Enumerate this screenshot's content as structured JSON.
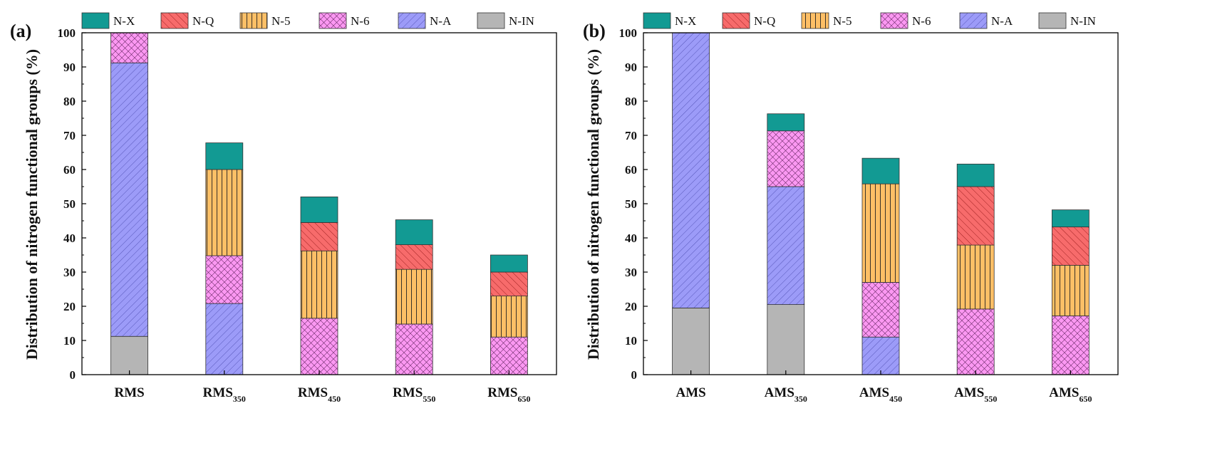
{
  "chart_data": [
    {
      "type": "bar",
      "stacked": true,
      "panel": "(a)",
      "ylabel": "Distribution of nitrogen functional groups (%)",
      "ylim": [
        0,
        100
      ],
      "yticks": [
        0,
        10,
        20,
        30,
        40,
        50,
        60,
        70,
        80,
        90,
        100
      ],
      "categories": [
        {
          "base": "RMS",
          "sub": ""
        },
        {
          "base": "RMS",
          "sub": "350"
        },
        {
          "base": "RMS",
          "sub": "450"
        },
        {
          "base": "RMS",
          "sub": "550"
        },
        {
          "base": "RMS",
          "sub": "650"
        }
      ],
      "series": [
        {
          "name": "N-IN",
          "values": [
            11.2,
            0,
            0,
            0,
            0
          ]
        },
        {
          "name": "N-A",
          "values": [
            80.0,
            20.8,
            0,
            0,
            0
          ]
        },
        {
          "name": "N-6",
          "values": [
            8.8,
            14.0,
            16.5,
            14.8,
            11.0
          ]
        },
        {
          "name": "N-5",
          "values": [
            0,
            25.2,
            19.7,
            16.0,
            12.0
          ]
        },
        {
          "name": "N-Q",
          "values": [
            0,
            0,
            8.3,
            7.2,
            7.0
          ]
        },
        {
          "name": "N-X",
          "values": [
            0,
            7.8,
            7.5,
            7.3,
            5.0
          ]
        }
      ]
    },
    {
      "type": "bar",
      "stacked": true,
      "panel": "(b)",
      "ylabel": "Distribution of nitrogen functional groups (%)",
      "ylim": [
        0,
        100
      ],
      "yticks": [
        0,
        10,
        20,
        30,
        40,
        50,
        60,
        70,
        80,
        90,
        100
      ],
      "categories": [
        {
          "base": "AMS",
          "sub": ""
        },
        {
          "base": "AMS",
          "sub": "350"
        },
        {
          "base": "AMS",
          "sub": "450"
        },
        {
          "base": "AMS",
          "sub": "550"
        },
        {
          "base": "AMS",
          "sub": "650"
        }
      ],
      "series": [
        {
          "name": "N-IN",
          "values": [
            19.5,
            20.5,
            0,
            0,
            0
          ]
        },
        {
          "name": "N-A",
          "values": [
            80.5,
            34.5,
            11.0,
            0,
            0
          ]
        },
        {
          "name": "N-6",
          "values": [
            0,
            16.3,
            16.0,
            19.2,
            17.2
          ]
        },
        {
          "name": "N-5",
          "values": [
            0,
            0,
            28.8,
            18.7,
            14.8
          ]
        },
        {
          "name": "N-Q",
          "values": [
            0,
            0,
            0,
            17.1,
            11.2
          ]
        },
        {
          "name": "N-X",
          "values": [
            0,
            5.0,
            7.5,
            6.6,
            5.0
          ]
        }
      ]
    }
  ],
  "legend": [
    "N-X",
    "N-Q",
    "N-5",
    "N-6",
    "N-A",
    "N-IN"
  ],
  "colors": {
    "N-X": "#129a93",
    "N-Q": "#f76b6b",
    "N-5": "#fdbf66",
    "N-6": "#fb98f2",
    "N-A": "#9c9bf8",
    "N-IN": "#b5b5b5"
  },
  "hatches": {
    "N-X": "none",
    "N-Q": "back",
    "N-5": "vert",
    "N-6": "cross",
    "N-A": "fwd",
    "N-IN": "none"
  }
}
